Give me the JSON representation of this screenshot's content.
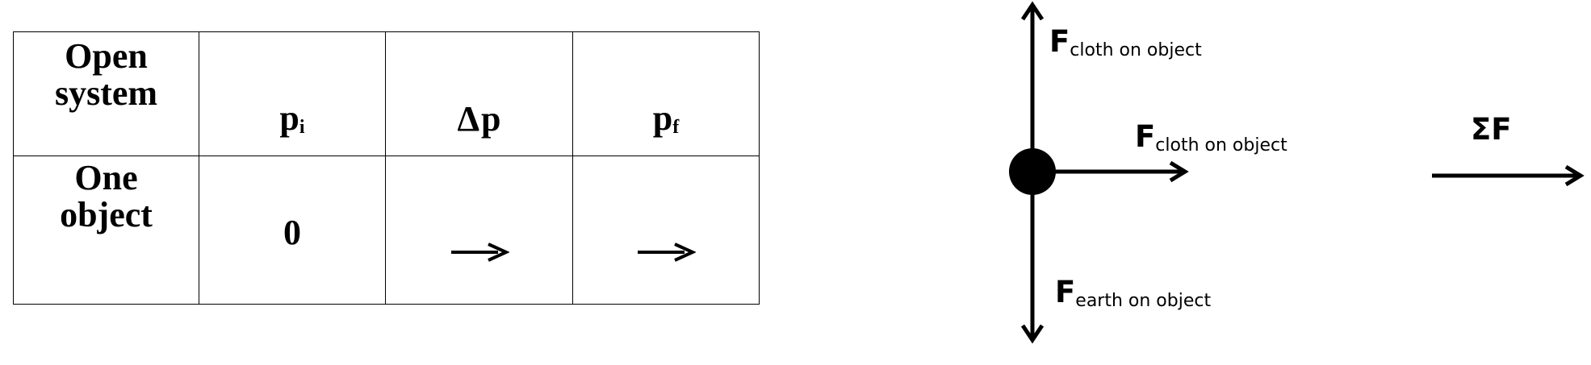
{
  "table": {
    "header": {
      "system_label_line1": "Open",
      "system_label_line2": "system",
      "col_pi_main": "p",
      "col_pi_sub": "i",
      "col_dp_delta": "Δ",
      "col_dp_main": "p",
      "col_pf_main": "p",
      "col_pf_sub": "f"
    },
    "row": {
      "label_line1": "One",
      "label_line2": "object",
      "pi_value": "0",
      "dp_direction": "right",
      "pf_direction": "right"
    }
  },
  "force_diagram": {
    "forces": [
      {
        "main": "F",
        "sub": "cloth on object",
        "direction": "up"
      },
      {
        "main": "F",
        "sub": "cloth on object",
        "direction": "right"
      },
      {
        "main": "F",
        "sub": "earth on object",
        "direction": "down"
      }
    ],
    "net_force": {
      "label": "ΣF",
      "direction": "right"
    }
  }
}
